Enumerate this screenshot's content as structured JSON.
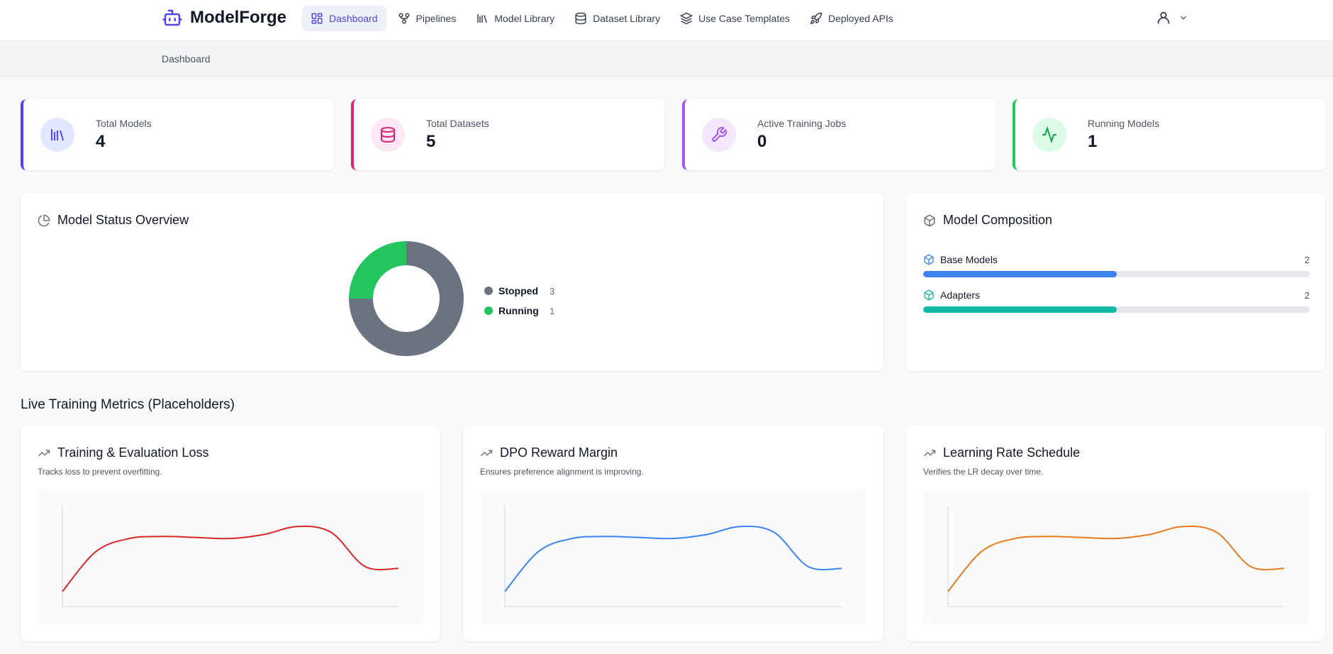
{
  "brand": {
    "name": "ModelForge",
    "accent": "#4f46e5"
  },
  "nav": {
    "items": [
      {
        "label": "Dashboard",
        "icon": "dashboard-icon",
        "active": true
      },
      {
        "label": "Pipelines",
        "icon": "pipelines-icon"
      },
      {
        "label": "Model Library",
        "icon": "library-icon"
      },
      {
        "label": "Dataset Library",
        "icon": "database-icon"
      },
      {
        "label": "Use Case Templates",
        "icon": "layers-icon"
      },
      {
        "label": "Deployed APIs",
        "icon": "rocket-icon"
      }
    ]
  },
  "breadcrumb": {
    "current": "Dashboard"
  },
  "stats": [
    {
      "label": "Total Models",
      "value": "4",
      "icon": "library-icon",
      "color": "#4f46e5"
    },
    {
      "label": "Total Datasets",
      "value": "5",
      "icon": "database-icon",
      "color": "#db2777"
    },
    {
      "label": "Active Training Jobs",
      "value": "0",
      "icon": "wrench-icon",
      "color": "#a855f7"
    },
    {
      "label": "Running Models",
      "value": "1",
      "icon": "activity-icon",
      "color": "#22c55e"
    }
  ],
  "status_overview": {
    "title": "Model Status Overview",
    "chart_data": {
      "type": "pie",
      "categories": [
        "Stopped",
        "Running"
      ],
      "values": [
        3,
        1
      ],
      "colors": [
        "#6b7280",
        "#22c55e"
      ],
      "legend": "right"
    },
    "legend": [
      {
        "name": "Stopped",
        "count": "3",
        "color": "#6b7280"
      },
      {
        "name": "Running",
        "count": "1",
        "color": "#22c55e"
      }
    ]
  },
  "composition": {
    "title": "Model Composition",
    "items": [
      {
        "label": "Base Models",
        "count": "2",
        "fraction": 0.5,
        "color": "#3b82f6"
      },
      {
        "label": "Adapters",
        "count": "2",
        "fraction": 0.5,
        "color": "#14b8a6"
      }
    ]
  },
  "live_metrics": {
    "title": "Live Training Metrics (Placeholders)",
    "charts": [
      {
        "title": "Training & Evaluation Loss",
        "subtitle": "Tracks loss to prevent overfitting.",
        "color": "#dc2626",
        "chart_data": {
          "type": "line",
          "x": [
            0,
            1,
            2,
            3,
            4,
            5,
            6,
            7,
            8,
            9,
            10
          ],
          "values": [
            0.15,
            0.55,
            0.68,
            0.7,
            0.69,
            0.68,
            0.72,
            0.8,
            0.74,
            0.4,
            0.38
          ]
        }
      },
      {
        "title": "DPO Reward Margin",
        "subtitle": "Ensures preference alignment is improving.",
        "color": "#3b82f6",
        "chart_data": {
          "type": "line",
          "x": [
            0,
            1,
            2,
            3,
            4,
            5,
            6,
            7,
            8,
            9,
            10
          ],
          "values": [
            0.15,
            0.55,
            0.68,
            0.7,
            0.69,
            0.68,
            0.72,
            0.8,
            0.74,
            0.4,
            0.38
          ]
        }
      },
      {
        "title": "Learning Rate Schedule",
        "subtitle": "Verifies the LR decay over time.",
        "color": "#ea7a1b",
        "chart_data": {
          "type": "line",
          "x": [
            0,
            1,
            2,
            3,
            4,
            5,
            6,
            7,
            8,
            9,
            10
          ],
          "values": [
            0.15,
            0.55,
            0.68,
            0.7,
            0.69,
            0.68,
            0.72,
            0.8,
            0.74,
            0.4,
            0.38
          ]
        }
      }
    ]
  }
}
